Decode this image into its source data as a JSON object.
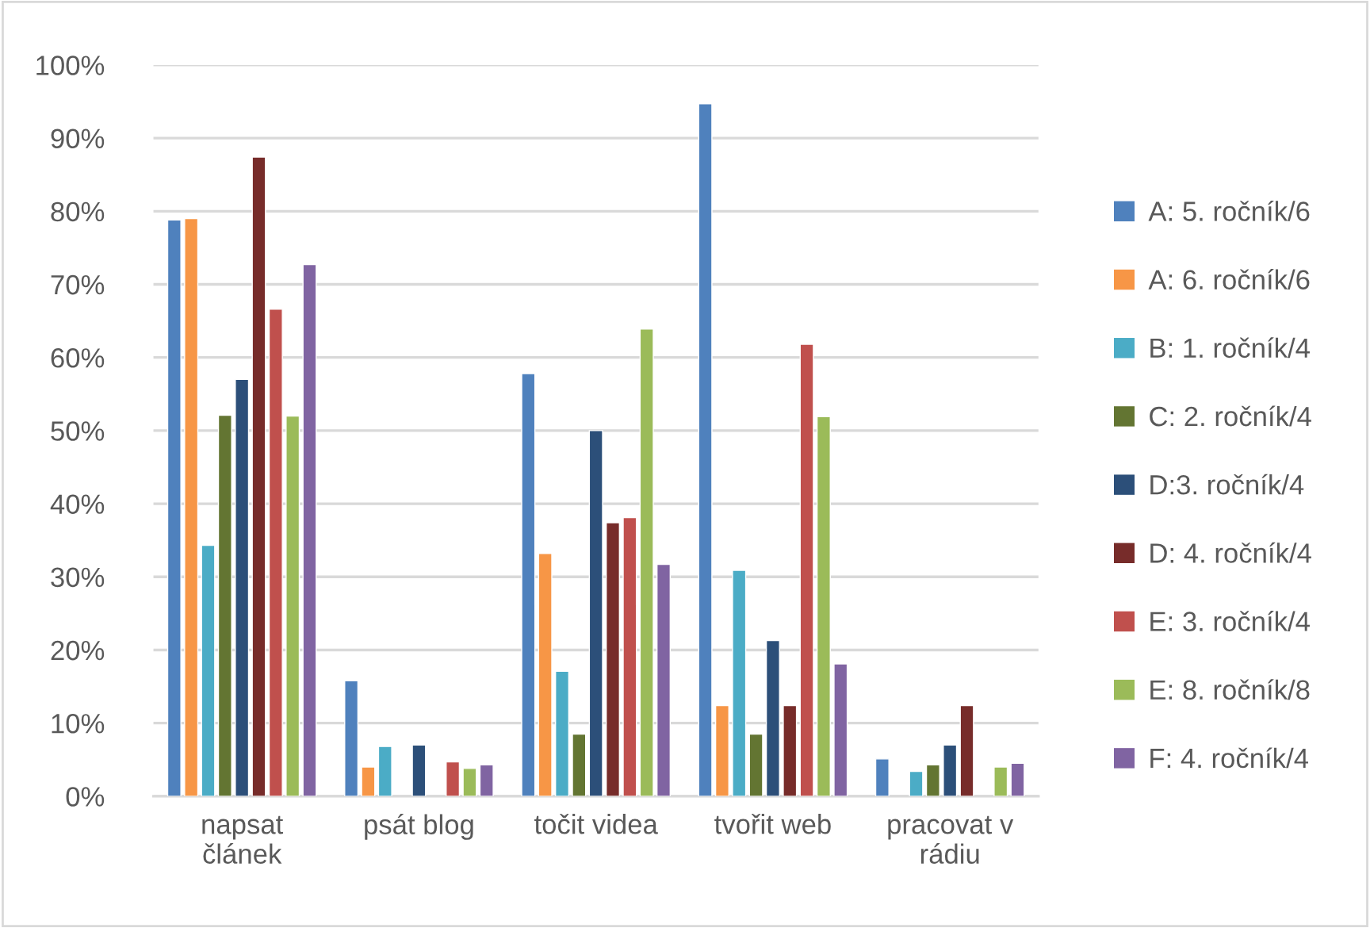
{
  "chart_data": {
    "type": "bar",
    "categories": [
      "napsat\nčlánek",
      "psát blog",
      "točit videa",
      "tvořit web",
      "pracovat v\nrádiu"
    ],
    "series": [
      {
        "name": "A: 5. ročník/6",
        "color": "#4f81bd",
        "values": [
          78.8,
          15.8,
          57.8,
          94.7,
          5.1
        ]
      },
      {
        "name": "A: 6. ročník/6",
        "color": "#f79646",
        "values": [
          79,
          4,
          33.2,
          12.4,
          null
        ]
      },
      {
        "name": "B: 1. ročník/4",
        "color": "#4bacc6",
        "values": [
          34.3,
          6.8,
          17.1,
          30.9,
          3.4
        ]
      },
      {
        "name": "C: 2. ročník/4",
        "color": "#637532",
        "values": [
          52.1,
          null,
          8.5,
          8.5,
          4.3
        ]
      },
      {
        "name": "D:3. ročník/4",
        "color": "#2c4f79",
        "values": [
          57,
          7,
          50,
          21.3,
          7
        ]
      },
      {
        "name": "D: 4. ročník/4",
        "color": "#772c2a",
        "values": [
          87.4,
          null,
          37.4,
          12.4,
          12.4
        ]
      },
      {
        "name": "E: 3. ročník/4",
        "color": "#c0504d",
        "values": [
          66.6,
          4.7,
          38.1,
          61.8,
          null
        ]
      },
      {
        "name": "E: 8. ročník/8",
        "color": "#9bbb59",
        "values": [
          52,
          3.8,
          63.9,
          51.9,
          4
        ]
      },
      {
        "name": "F: 4. ročník/4",
        "color": "#8064a2",
        "values": [
          72.7,
          4.3,
          31.7,
          18.1,
          4.5
        ]
      }
    ],
    "ylim": [
      0,
      100
    ],
    "yticks": [
      {
        "value": 0,
        "label": "0%"
      },
      {
        "value": 10,
        "label": "10%"
      },
      {
        "value": 20,
        "label": "20%"
      },
      {
        "value": 30,
        "label": "30%"
      },
      {
        "value": 40,
        "label": "40%"
      },
      {
        "value": 50,
        "label": "50%"
      },
      {
        "value": 60,
        "label": "60%"
      },
      {
        "value": 70,
        "label": "70%"
      },
      {
        "value": 80,
        "label": "80%"
      },
      {
        "value": 90,
        "label": "90%"
      },
      {
        "value": 100,
        "label": "100%"
      }
    ],
    "grid": "y",
    "legend": "right"
  }
}
